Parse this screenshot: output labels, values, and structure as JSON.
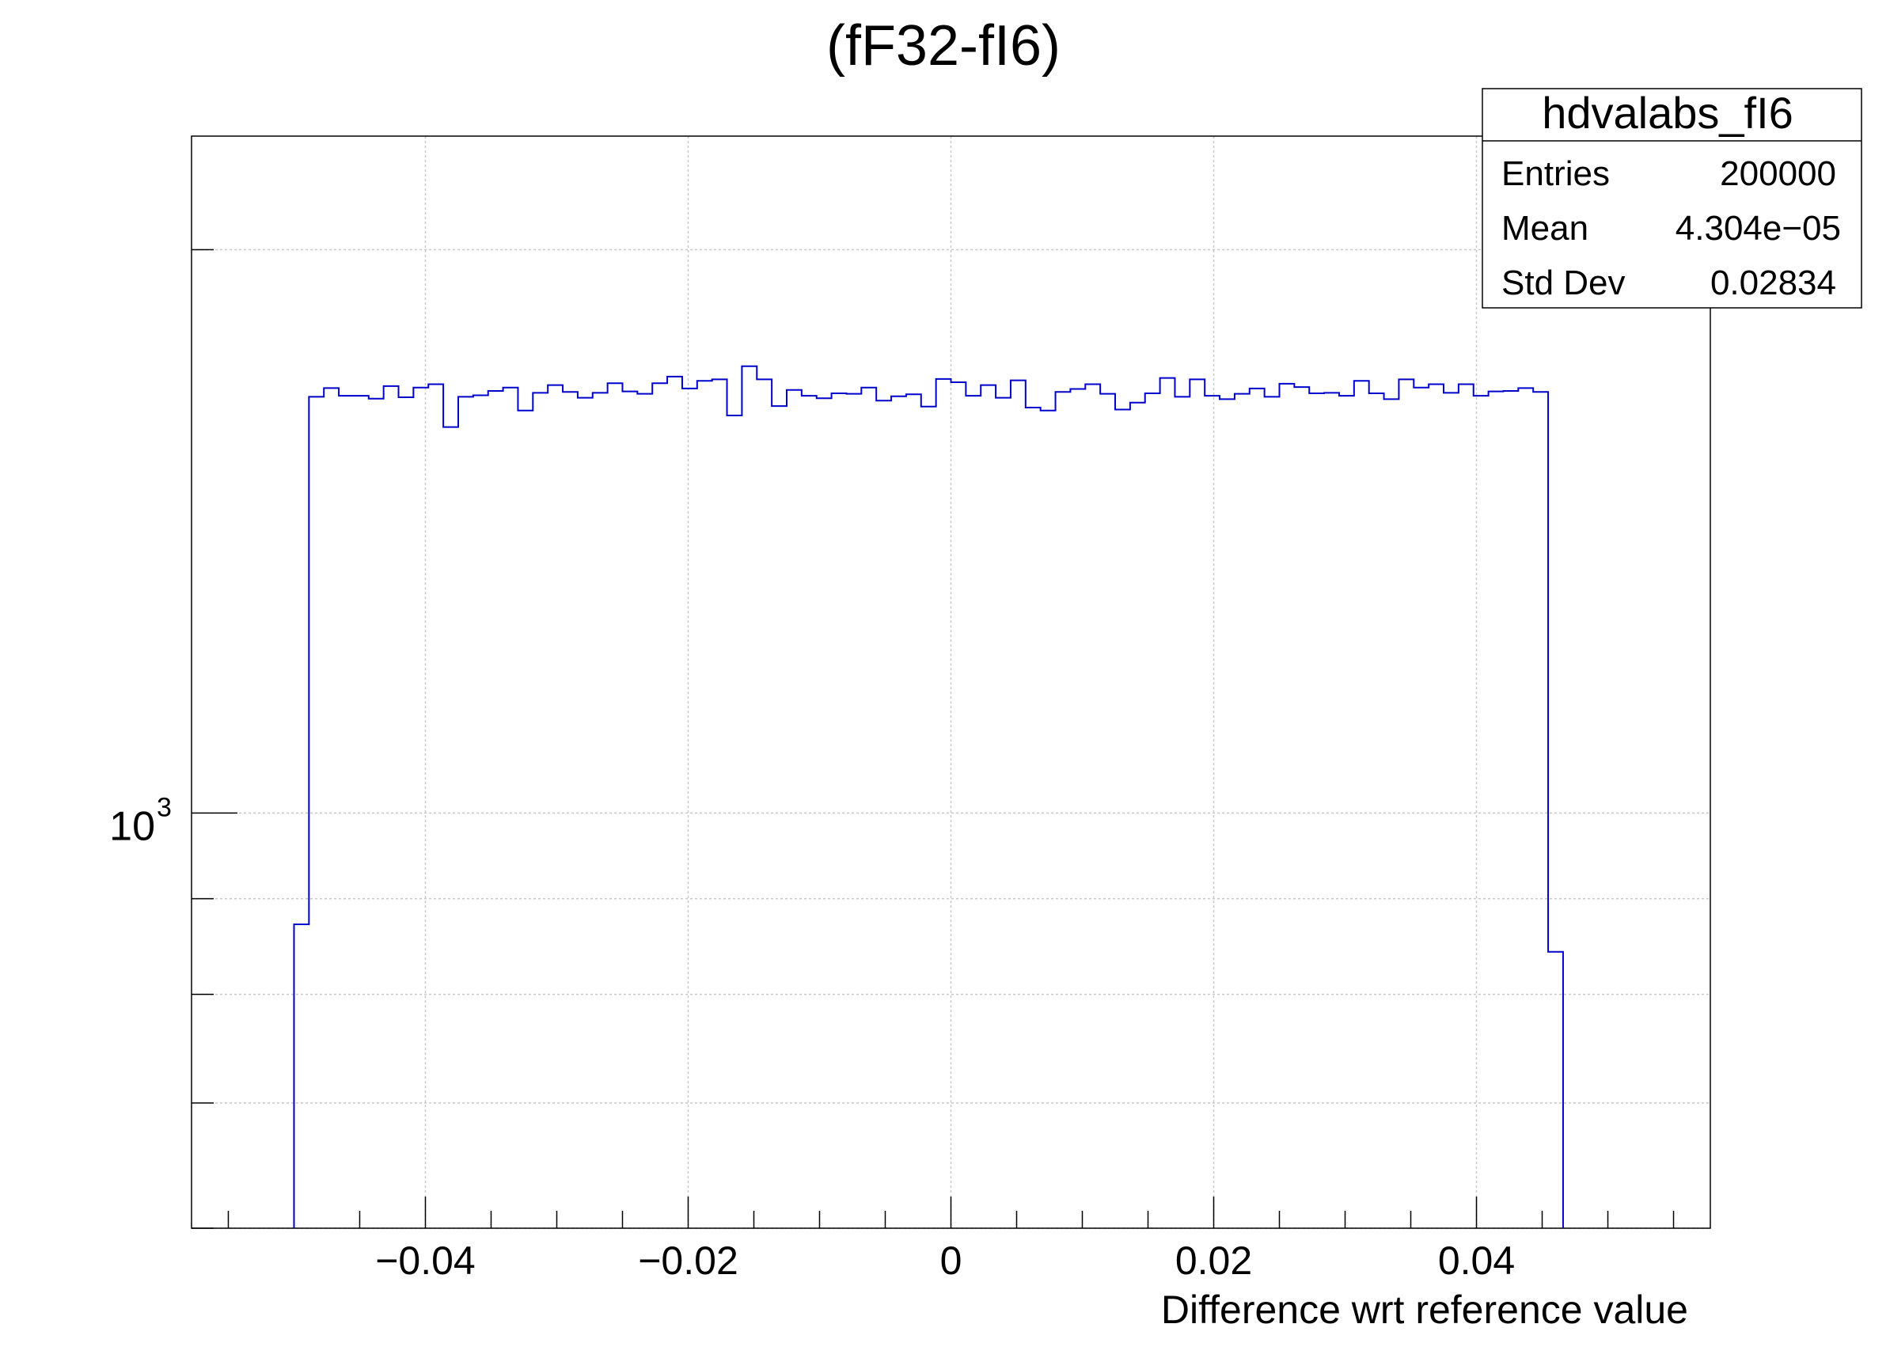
{
  "chart_data": {
    "type": "histogram",
    "title": "(fF32-fI6)",
    "xlabel": "Difference wrt reference value",
    "ylabel": "",
    "y_scale": "log",
    "grid": true,
    "xlim": [
      -0.0578,
      0.0578
    ],
    "ylim": [
      600,
      2300
    ],
    "x_ticks": [
      {
        "value": -0.04,
        "label": "−0.04"
      },
      {
        "value": -0.02,
        "label": "−0.02"
      },
      {
        "value": 0,
        "label": "0"
      },
      {
        "value": 0.02,
        "label": "0.02"
      },
      {
        "value": 0.04,
        "label": "0.04"
      }
    ],
    "y_major_tick": {
      "value": 1000,
      "base": "10",
      "exponent": "3"
    },
    "y_minor_ticks": [
      600,
      700,
      800,
      900,
      2000
    ],
    "bin_edges_range": [
      -0.05,
      0.05
    ],
    "bin_count": 88,
    "series": [
      {
        "color": "#0000cc",
        "values": [
          872,
          1669,
          1687,
          1671,
          1671,
          1665,
          1691,
          1668,
          1688,
          1695,
          1608,
          1669,
          1672,
          1681,
          1688,
          1641,
          1677,
          1693,
          1679,
          1667,
          1677,
          1697,
          1680,
          1675,
          1697,
          1711,
          1686,
          1702,
          1705,
          1631,
          1733,
          1705,
          1650,
          1683,
          1671,
          1666,
          1676,
          1675,
          1688,
          1661,
          1670,
          1674,
          1649,
          1706,
          1699,
          1671,
          1693,
          1667,
          1703,
          1647,
          1641,
          1679,
          1685,
          1695,
          1675,
          1643,
          1657,
          1676,
          1708,
          1669,
          1705,
          1671,
          1664,
          1675,
          1686,
          1669,
          1696,
          1689,
          1676,
          1677,
          1671,
          1702,
          1676,
          1664,
          1705,
          1688,
          1695,
          1677,
          1695,
          1671,
          1680,
          1681,
          1687,
          1679,
          843,
          0,
          0,
          0
        ]
      }
    ]
  },
  "stats_box": {
    "name": "hdvalabs_fI6",
    "rows": [
      {
        "label": "Entries",
        "value": "200000"
      },
      {
        "label": "Mean",
        "value": "4.304e−05"
      },
      {
        "label": "Std Dev",
        "value": "0.02834"
      }
    ]
  }
}
